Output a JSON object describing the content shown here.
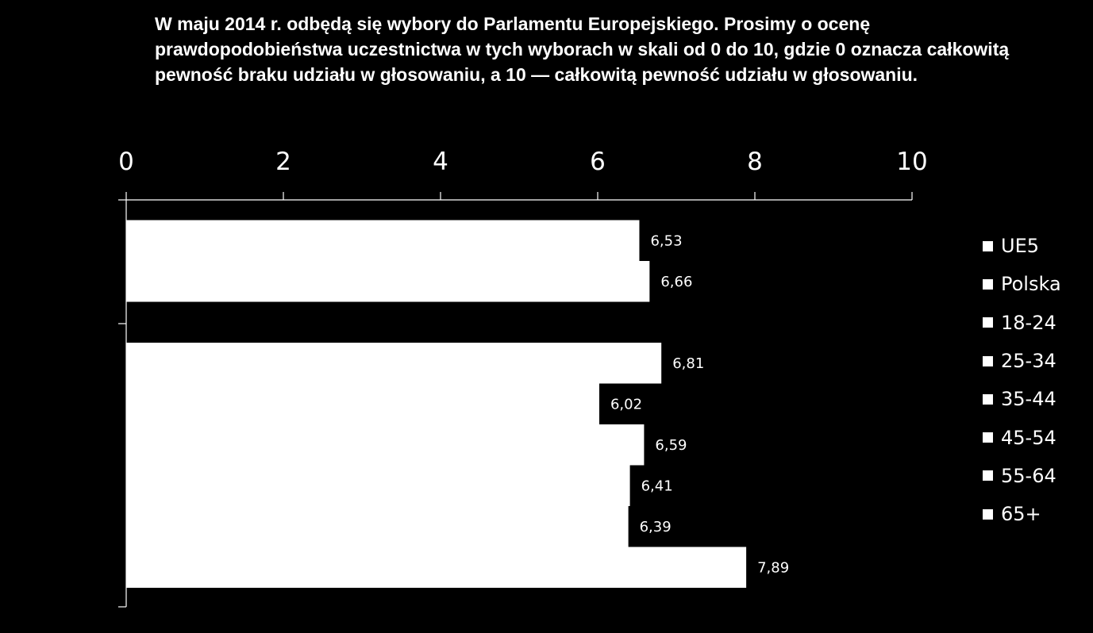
{
  "chart_data": {
    "type": "bar",
    "orientation": "horizontal",
    "title": "W maju 2014 r. odbędą się wybory do Parlamentu Europejskiego. Prosimy o ocenę prawdopodobieństwa uczestnictwa w tych wyborach w skali od 0 do 10, gdzie 0 oznacza całkowitą pewność braku udziału w głosowaniu, a 10 — całkowitą pewność udziału w głosowaniu.",
    "xlabel": "",
    "ylabel": "",
    "xlim": [
      0,
      10
    ],
    "x_ticks": [
      0,
      2,
      4,
      6,
      8,
      10
    ],
    "x_tick_labels": [
      "0",
      "2",
      "4",
      "6",
      "8",
      "10"
    ],
    "x_axis_position": "top",
    "grid": false,
    "legend_position": "right",
    "bar_color": "#ffffff",
    "background_color": "#000000",
    "groups": [
      {
        "series": [
          {
            "name": "UE5",
            "value": 6.53,
            "label": "6,53"
          },
          {
            "name": "Polska",
            "value": 6.66,
            "label": "6,66"
          }
        ]
      },
      {
        "series": [
          {
            "name": "18-24",
            "value": 6.81,
            "label": "6,81"
          },
          {
            "name": "25-34",
            "value": 6.02,
            "label": "6,02"
          },
          {
            "name": "35-44",
            "value": 6.59,
            "label": "6,59"
          },
          {
            "name": "45-54",
            "value": 6.41,
            "label": "6,41"
          },
          {
            "name": "55-64",
            "value": 6.39,
            "label": "6,39"
          },
          {
            "name": "65+",
            "value": 7.89,
            "label": "7,89"
          }
        ]
      }
    ],
    "legend": [
      "UE5",
      "Polska",
      "18-24",
      "25-34",
      "35-44",
      "45-54",
      "55-64",
      "65+"
    ]
  }
}
